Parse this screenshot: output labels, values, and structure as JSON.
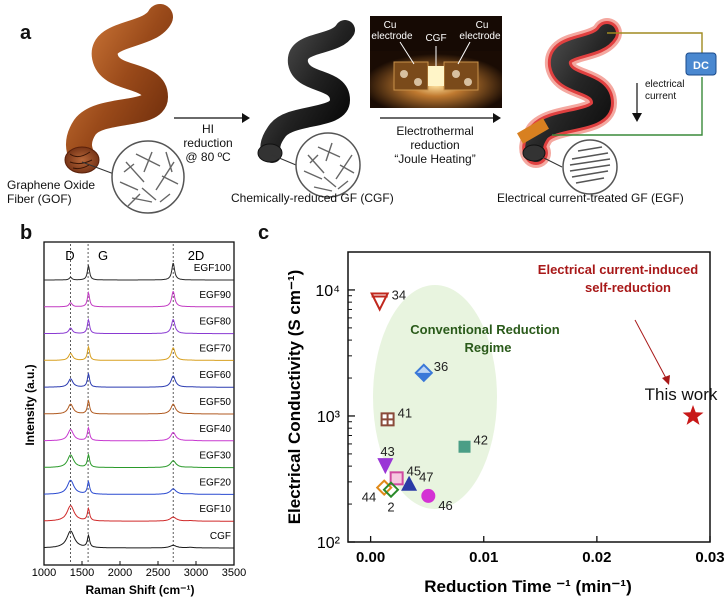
{
  "panel_a": {
    "label": "a",
    "gof_caption": [
      "Graphene Oxide",
      "Fiber (GOF)"
    ],
    "step1": [
      "HI",
      "reduction",
      "@ 80 ºC"
    ],
    "cgf_caption": "Chemically-reduced GF (CGF)",
    "photo": {
      "left_label": [
        "Cu",
        "electrode"
      ],
      "center_label": "CGF",
      "right_label": [
        "Cu",
        "electrode"
      ]
    },
    "step2": [
      "Electrothermal",
      "reduction",
      "“Joule Heating”"
    ],
    "dc_label": "DC",
    "current_label": [
      "electrical",
      "current"
    ],
    "egf_caption": "Electrical current-treated GF (EGF)"
  },
  "panel_b": {
    "label": "b",
    "peaks": [
      "D",
      "G",
      "2D"
    ],
    "ylabel": "Intensity (a.u.)",
    "xlabel": "Raman Shift (cm⁻¹)",
    "xticks": [
      "1000",
      "1500",
      "2000",
      "2500",
      "3000",
      "3500"
    ],
    "spectra": [
      {
        "name": "EGF100",
        "color": "#2a2a2a"
      },
      {
        "name": "EGF90",
        "color": "#c23ac2"
      },
      {
        "name": "EGF80",
        "color": "#8a3ad2"
      },
      {
        "name": "EGF70",
        "color": "#d8a020"
      },
      {
        "name": "EGF60",
        "color": "#2a3ab0"
      },
      {
        "name": "EGF50",
        "color": "#b05a20"
      },
      {
        "name": "EGF40",
        "color": "#c83ad0"
      },
      {
        "name": "EGF30",
        "color": "#2a9a2a"
      },
      {
        "name": "EGF20",
        "color": "#2a4ad0"
      },
      {
        "name": "EGF10",
        "color": "#d02a2a"
      },
      {
        "name": "CGF",
        "color": "#1a1a1a"
      }
    ]
  },
  "panel_c": {
    "label": "c",
    "chart_data": {
      "type": "scatter",
      "xlabel": "Reduction Time ⁻¹ (min⁻¹)",
      "ylabel": "Electrical Conductivity (S cm⁻¹)",
      "xlim": [
        -0.002,
        0.03
      ],
      "ylim": [
        100,
        20000
      ],
      "yscale": "log",
      "xticks": [
        "0.00",
        "0.01",
        "0.02",
        "0.03"
      ],
      "yticks": [
        "10²",
        "10³",
        "10⁴"
      ],
      "regime_label": [
        "Conventional Reduction",
        "Regime"
      ],
      "annotation": [
        "Electrical current-induced",
        "self-reduction"
      ],
      "points": [
        {
          "ref": "34",
          "x": 0.0008,
          "y": 8100,
          "marker": "tri-down-open",
          "color": "#c0281e"
        },
        {
          "ref": "36",
          "x": 0.0047,
          "y": 2200,
          "marker": "diamond",
          "color": "#3a78d8"
        },
        {
          "ref": "41",
          "x": 0.0015,
          "y": 940,
          "marker": "square-cross",
          "color": "#8a4a3a"
        },
        {
          "ref": "42",
          "x": 0.0083,
          "y": 570,
          "marker": "square",
          "color": "#4a9e86"
        },
        {
          "ref": "43",
          "x": 0.0013,
          "y": 400,
          "marker": "tri-down",
          "color": "#9a36d6"
        },
        {
          "ref": "45",
          "x": 0.0023,
          "y": 320,
          "marker": "square-open",
          "color": "#d04aa0"
        },
        {
          "ref": "47",
          "x": 0.0034,
          "y": 290,
          "marker": "tri-up",
          "color": "#2a3aa6"
        },
        {
          "ref": "44",
          "x": 0.0012,
          "y": 270,
          "marker": "diamond-open",
          "color": "#e08a1a"
        },
        {
          "ref": "2",
          "x": 0.0018,
          "y": 260,
          "marker": "diamond-open",
          "color": "#2a8a2a"
        },
        {
          "ref": "46",
          "x": 0.0051,
          "y": 232,
          "marker": "circle",
          "color": "#d432d4"
        },
        {
          "ref": "This work",
          "x": 0.0285,
          "y": 1000,
          "marker": "star",
          "color": "#c81818"
        }
      ]
    }
  }
}
